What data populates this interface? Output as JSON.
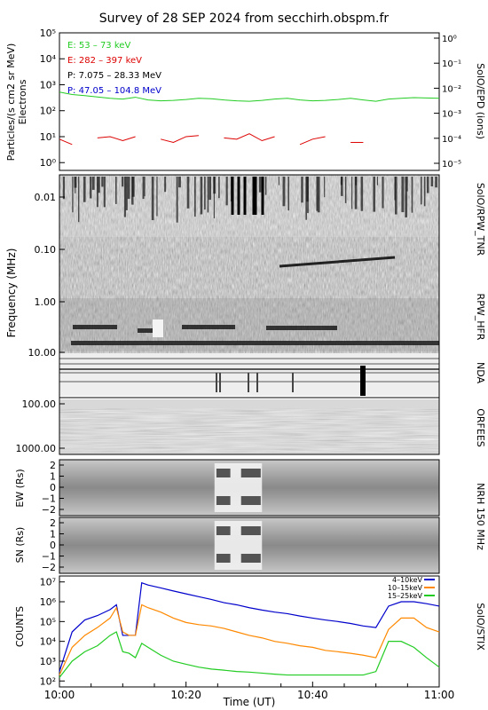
{
  "title": "Survey of 28 SEP 2024 from secchirh.obspm.fr",
  "xaxis": {
    "label": "Time (UT)",
    "ticks": [
      "10:00",
      "10:20",
      "10:40",
      "11:00"
    ],
    "range_minutes": [
      0,
      60
    ]
  },
  "panels": {
    "epd": {
      "ylabel": "Particles/(s cm2 sr MeV)",
      "ylabel2": "Electrons",
      "rlabel": "SolO/EPD (ions)",
      "left_ticks": [
        "10⁰",
        "10¹",
        "10²",
        "10³",
        "10⁴",
        "10⁵"
      ],
      "right_ticks": [
        "10⁻⁵",
        "10⁻⁴",
        "10⁻³",
        "10⁻²",
        "10⁻¹",
        "10⁰"
      ],
      "legend": [
        {
          "text": "E: 53 – 73 keV",
          "color": "#22cc22"
        },
        {
          "text": "E: 282 – 397 keV",
          "color": "#dd0000"
        },
        {
          "text": "P: 7.075 – 28.33 MeV",
          "color": "#000000"
        },
        {
          "text": "P: 47.05 – 104.8 MeV",
          "color": "#0000cc"
        }
      ]
    },
    "radio": {
      "ylabel": "Frequency (MHz)",
      "ticks": [
        "0.01",
        "0.10",
        "1.00",
        "10.00",
        "100.00",
        "1000.00"
      ],
      "instruments": [
        "SolO/RPW_TNR",
        "RPW_HFR",
        "NDA",
        "ORFEES"
      ]
    },
    "nrh": {
      "label": "NRH 150 MHz",
      "ew_label": "EW (Rs)",
      "sn_label": "SN (Rs)",
      "ticks": [
        "2",
        "1",
        "0",
        "−1",
        "−2"
      ]
    },
    "stix": {
      "ylabel": "COUNTS",
      "rlabel": "SolO/STIX",
      "ticks": [
        "10²",
        "10³",
        "10⁴",
        "10⁵",
        "10⁶",
        "10⁷"
      ]
    }
  },
  "chart_data": [
    {
      "type": "line",
      "title": "",
      "xlabel": "",
      "ylabel": "Particles/(s cm2 sr MeV)",
      "log_y": true,
      "ylim": [
        0.5,
        100000
      ],
      "x_minutes": [
        0,
        2,
        4,
        6,
        8,
        10,
        12,
        14,
        16,
        18,
        20,
        22,
        24,
        26,
        28,
        30,
        32,
        34,
        36,
        38,
        40,
        42,
        44,
        46,
        48,
        50,
        52,
        54,
        56,
        58,
        60
      ],
      "series": [
        {
          "name": "E: 53 – 73 keV",
          "color": "#22cc22",
          "values": [
            520,
            420,
            380,
            340,
            300,
            280,
            330,
            260,
            240,
            250,
            270,
            300,
            290,
            260,
            240,
            230,
            250,
            280,
            300,
            260,
            240,
            250,
            270,
            300,
            260,
            230,
            280,
            300,
            320,
            310,
            300
          ]
        },
        {
          "name": "E: 282 – 397 keV",
          "color": "#dd0000",
          "values": [
            8,
            5,
            null,
            9,
            10,
            7,
            10,
            null,
            8,
            6,
            10,
            11,
            null,
            9,
            8,
            13,
            7,
            10,
            null,
            5,
            8,
            10,
            null,
            6,
            6,
            null,
            null,
            10,
            null,
            11,
            null
          ]
        }
      ]
    },
    {
      "type": "line",
      "title": "",
      "xlabel": "Time (UT)",
      "ylabel": "COUNTS",
      "log_y": true,
      "ylim": [
        100,
        10000000
      ],
      "legend_position": "top-right",
      "x_minutes": [
        0,
        2,
        4,
        6,
        8,
        9,
        10,
        11,
        12,
        13,
        14,
        16,
        18,
        20,
        22,
        24,
        26,
        28,
        30,
        32,
        34,
        36,
        38,
        40,
        42,
        44,
        46,
        48,
        50,
        52,
        54,
        56,
        58,
        60
      ],
      "series": [
        {
          "name": "4–10keV",
          "color": "#0000cc",
          "values": [
            300,
            30000,
            120000,
            200000,
            400000,
            700000,
            20000,
            20000,
            20000,
            9000000,
            7000000,
            5000000,
            3500000,
            2500000,
            1800000,
            1300000,
            900000,
            700000,
            500000,
            380000,
            300000,
            250000,
            190000,
            150000,
            120000,
            100000,
            80000,
            60000,
            50000,
            600000,
            1000000,
            1000000,
            800000,
            600000
          ]
        },
        {
          "name": "10–15keV",
          "color": "#ff8800",
          "values": [
            200,
            5000,
            20000,
            50000,
            150000,
            500000,
            30000,
            20000,
            20000,
            700000,
            500000,
            300000,
            150000,
            90000,
            70000,
            60000,
            45000,
            30000,
            20000,
            15000,
            10000,
            8000,
            6000,
            5000,
            3500,
            3000,
            2500,
            2000,
            1500,
            40000,
            150000,
            150000,
            50000,
            30000
          ]
        },
        {
          "name": "15–25keV",
          "color": "#22cc22",
          "values": [
            150,
            1000,
            3000,
            6000,
            20000,
            30000,
            3000,
            2500,
            1500,
            8000,
            5000,
            2000,
            1000,
            700,
            500,
            400,
            350,
            300,
            280,
            250,
            220,
            200,
            200,
            200,
            200,
            200,
            200,
            200,
            300,
            10000,
            10000,
            5000,
            1500,
            500
          ]
        }
      ]
    }
  ]
}
